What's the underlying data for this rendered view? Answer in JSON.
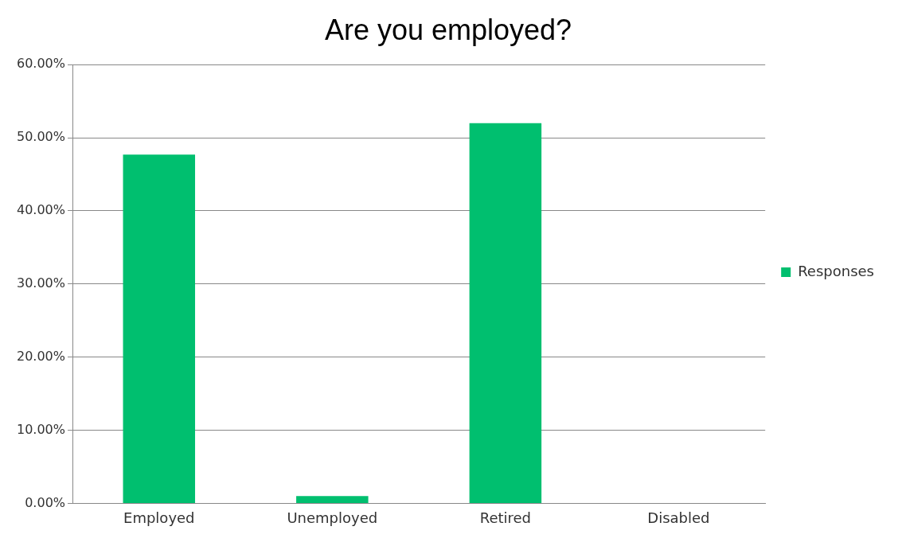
{
  "chart_data": {
    "type": "bar",
    "title": "Are you employed?",
    "categories": [
      "Employed",
      "Unemployed",
      "Retired",
      "Disabled"
    ],
    "series": [
      {
        "name": "Responses",
        "color": "#00bf6f",
        "values": [
          47.7,
          1.0,
          52.0,
          0
        ]
      }
    ],
    "ylim": [
      0,
      60
    ],
    "yticks": [
      {
        "value": 0,
        "label": "0.00%"
      },
      {
        "value": 10,
        "label": "10.00%"
      },
      {
        "value": 20,
        "label": "20.00%"
      },
      {
        "value": 30,
        "label": "30.00%"
      },
      {
        "value": 40,
        "label": "40.00%"
      },
      {
        "value": 50,
        "label": "50.00%"
      },
      {
        "value": 60,
        "label": "60.00%"
      }
    ],
    "grid": "y",
    "legend": "right"
  }
}
